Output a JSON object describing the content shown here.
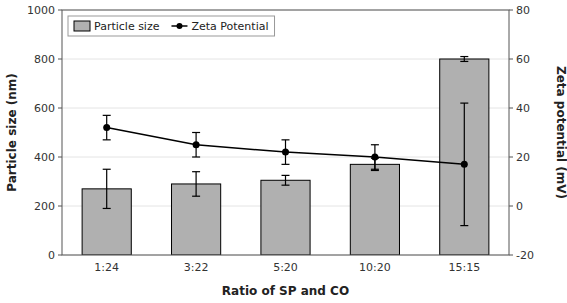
{
  "chart_data": {
    "type": "bar",
    "categories": [
      "1:24",
      "3:22",
      "5:20",
      "10:20",
      "15:15"
    ],
    "xlabel": "Ratio of SP and CO",
    "ylabel": "Particle size (nm)",
    "y2label": "Zeta potential (mV)",
    "ylim": [
      0,
      1000
    ],
    "yticks": [
      0,
      200,
      400,
      600,
      800,
      1000
    ],
    "y2lim": [
      -20,
      80
    ],
    "y2ticks": [
      -20,
      0,
      20,
      40,
      60,
      80
    ],
    "legend": "upper left",
    "series": [
      {
        "name": "Particle size",
        "type": "bar",
        "color": "#b0b0b0",
        "values": [
          270,
          290,
          305,
          370,
          800
        ],
        "errors": [
          80,
          50,
          20,
          25,
          10
        ]
      },
      {
        "name": "Zeta Potential",
        "type": "line",
        "axis": "y2",
        "color": "#000000",
        "marker": "circle",
        "values": [
          32,
          25,
          22,
          20,
          17
        ],
        "errors": [
          5,
          5,
          5,
          5,
          25
        ]
      }
    ]
  }
}
